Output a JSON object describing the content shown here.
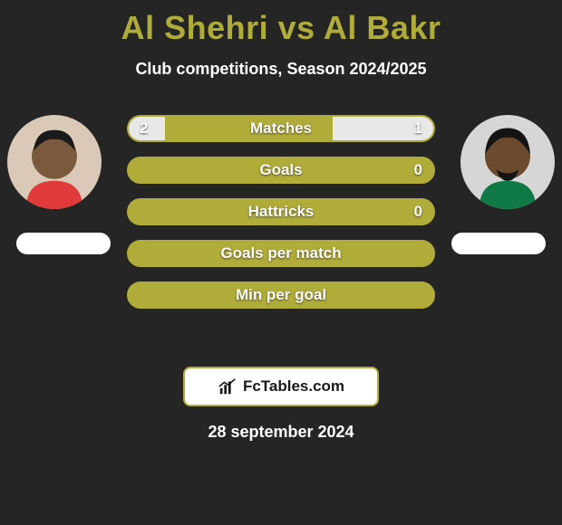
{
  "title": "Al Shehri vs Al Bakr",
  "subtitle": "Club competitions, Season 2024/2025",
  "date": "28 september 2024",
  "brand": "FcTables.com",
  "colors": {
    "accent": "#b0ac3a",
    "fill_neutral": "#e8e8e8",
    "background": "#252525",
    "text_on_dark": "#ffffff",
    "brand_box_bg": "#ffffff",
    "brand_text": "#1a1a1a"
  },
  "players": {
    "left": {
      "name": "Al Shehri",
      "avatar_bg": "#d9c9b6",
      "skin": "#7a5a3c",
      "hair": "#1a1a1a",
      "shirt": "#e03a3a"
    },
    "right": {
      "name": "Al Bakr",
      "avatar_bg": "#d6d6d6",
      "skin": "#6b4a2e",
      "hair": "#141414",
      "shirt": "#0f7a46"
    }
  },
  "bars": [
    {
      "label": "Matches",
      "left_value": "2",
      "right_value": "1",
      "left_pct": 12,
      "right_pct": 33
    },
    {
      "label": "Goals",
      "left_value": "",
      "right_value": "0",
      "left_pct": 0,
      "right_pct": 0
    },
    {
      "label": "Hattricks",
      "left_value": "",
      "right_value": "0",
      "left_pct": 0,
      "right_pct": 0
    },
    {
      "label": "Goals per match",
      "left_value": "",
      "right_value": "",
      "left_pct": 0,
      "right_pct": 0
    },
    {
      "label": "Min per goal",
      "left_value": "",
      "right_value": "",
      "left_pct": 0,
      "right_pct": 0
    }
  ],
  "typography": {
    "title_fontsize": 36,
    "subtitle_fontsize": 18,
    "bar_label_fontsize": 17,
    "date_fontsize": 18
  }
}
